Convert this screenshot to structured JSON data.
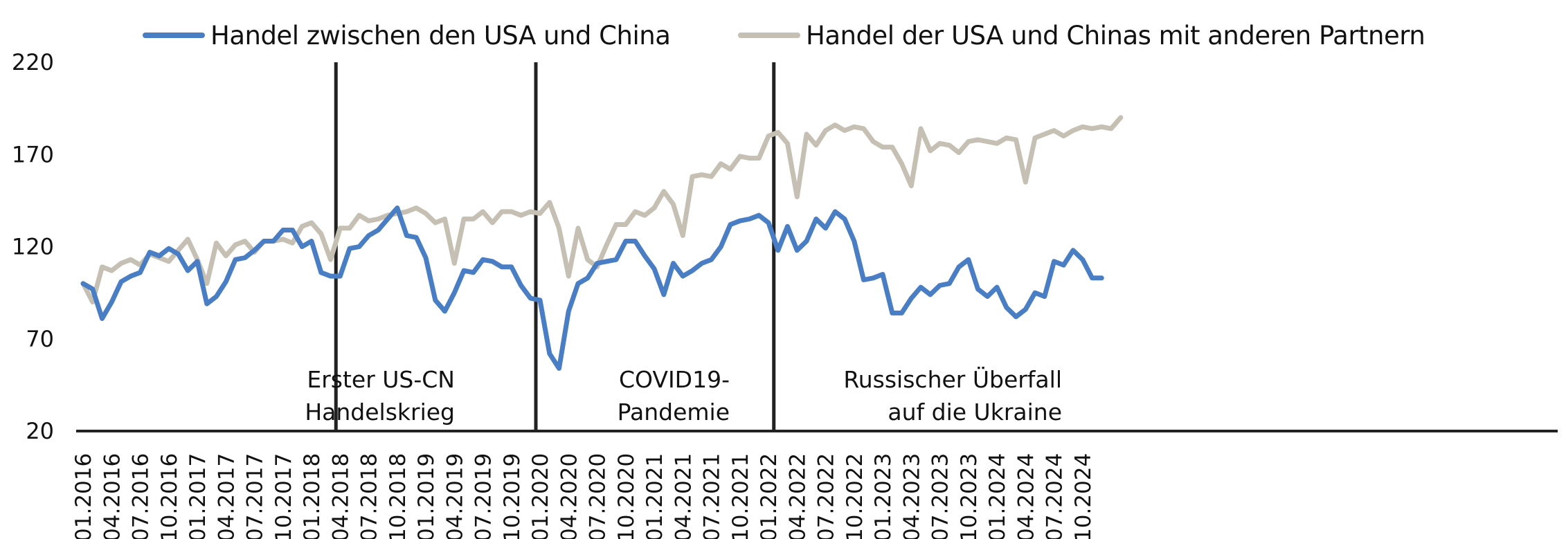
{
  "legend": {
    "series_0": "Handel zwischen den USA und China",
    "series_1": "Handel der USA und Chinas mit anderen Partnern"
  },
  "colors": {
    "series_0": "#4a7ec4",
    "series_1": "#c5c0b3",
    "axis": "#222222",
    "event_line": "#222222"
  },
  "chart_data": {
    "type": "line",
    "title": "",
    "xlabel": "",
    "ylabel": "",
    "ylim": [
      20,
      220
    ],
    "yticks": [
      20,
      70,
      120,
      170,
      220
    ],
    "grid": false,
    "legend_position": "top",
    "x_tick_labels": [
      "01.2016",
      "04.2016",
      "07.2016",
      "10.2016",
      "01.2017",
      "04.2017",
      "07.2017",
      "10.2017",
      "01.2018",
      "04.2018",
      "07.2018",
      "10.2018",
      "01.2019",
      "04.2019",
      "07.2019",
      "10.2019",
      "01.2020",
      "04.2020",
      "07.2020",
      "10.2020",
      "01.2021",
      "04.2021",
      "07.2021",
      "10.2021",
      "01.2022",
      "04.2022",
      "07.2022",
      "10.2022",
      "01.2023",
      "04.2023",
      "07.2023",
      "10.2023",
      "01.2024",
      "04.2024",
      "07.2024",
      "10.2024"
    ],
    "x_start": "01.2016",
    "x_frequency": "monthly",
    "series": [
      {
        "name": "Handel zwischen den USA und China",
        "values": [
          100,
          97,
          81,
          90,
          101,
          104,
          106,
          117,
          115,
          119,
          116,
          107,
          112,
          89,
          93,
          101,
          113,
          114,
          118,
          123,
          123,
          129,
          129,
          120,
          123,
          106,
          104,
          104,
          119,
          120,
          126,
          129,
          135,
          141,
          126,
          125,
          114,
          91,
          85,
          95,
          107,
          106,
          113,
          112,
          109,
          109,
          99,
          92,
          91,
          62,
          54,
          85,
          100,
          103,
          111,
          112,
          113,
          123,
          123,
          115,
          108,
          94,
          111,
          104,
          107,
          111,
          113,
          120,
          132,
          134,
          135,
          137,
          133,
          118,
          131,
          118,
          123,
          135,
          130,
          139,
          135,
          123,
          102,
          103,
          105,
          84,
          84,
          92,
          98,
          94,
          99,
          100,
          109,
          113,
          97,
          93,
          98,
          87,
          82,
          86,
          95,
          93,
          112,
          110,
          118,
          113,
          103,
          103
        ],
        "color": "#4a7ec4"
      },
      {
        "name": "Handel der USA und Chinas mit anderen Partnern",
        "values": [
          100,
          90,
          109,
          107,
          111,
          113,
          110,
          116,
          114,
          112,
          118,
          124,
          113,
          100,
          122,
          115,
          121,
          123,
          117,
          123,
          123,
          124,
          122,
          131,
          133,
          127,
          113,
          130,
          130,
          137,
          134,
          135,
          137,
          138,
          139,
          141,
          138,
          133,
          135,
          111,
          135,
          135,
          139,
          133,
          139,
          139,
          137,
          139,
          138,
          144,
          130,
          104,
          130,
          113,
          109,
          121,
          132,
          132,
          139,
          137,
          141,
          150,
          143,
          126,
          158,
          159,
          158,
          165,
          162,
          169,
          168,
          168,
          180,
          182,
          176,
          147,
          181,
          175,
          183,
          186,
          183,
          185,
          184,
          177,
          174,
          174,
          165,
          153,
          184,
          172,
          176,
          175,
          171,
          177,
          178,
          177,
          176,
          179,
          178,
          155,
          179,
          181,
          183,
          180,
          183,
          185,
          184,
          185,
          184,
          190
        ],
        "color": "#c5c0b3"
      }
    ],
    "events": [
      {
        "x": "04.2018",
        "label": [
          "Erster US-CN",
          "Handelskrieg"
        ]
      },
      {
        "x": "01.2020",
        "label": [
          "COVID19-",
          "Pandemie"
        ]
      },
      {
        "x": "02.2022",
        "label": [
          "Russischer Überfall",
          "auf die Ukraine"
        ]
      }
    ]
  },
  "annotations": {
    "event_0_line1": "Erster US-CN",
    "event_0_line2": "Handelskrieg",
    "event_1_line1": "COVID19-",
    "event_1_line2": "Pandemie",
    "event_2_line1": "Russischer Überfall",
    "event_2_line2": "auf die Ukraine"
  }
}
